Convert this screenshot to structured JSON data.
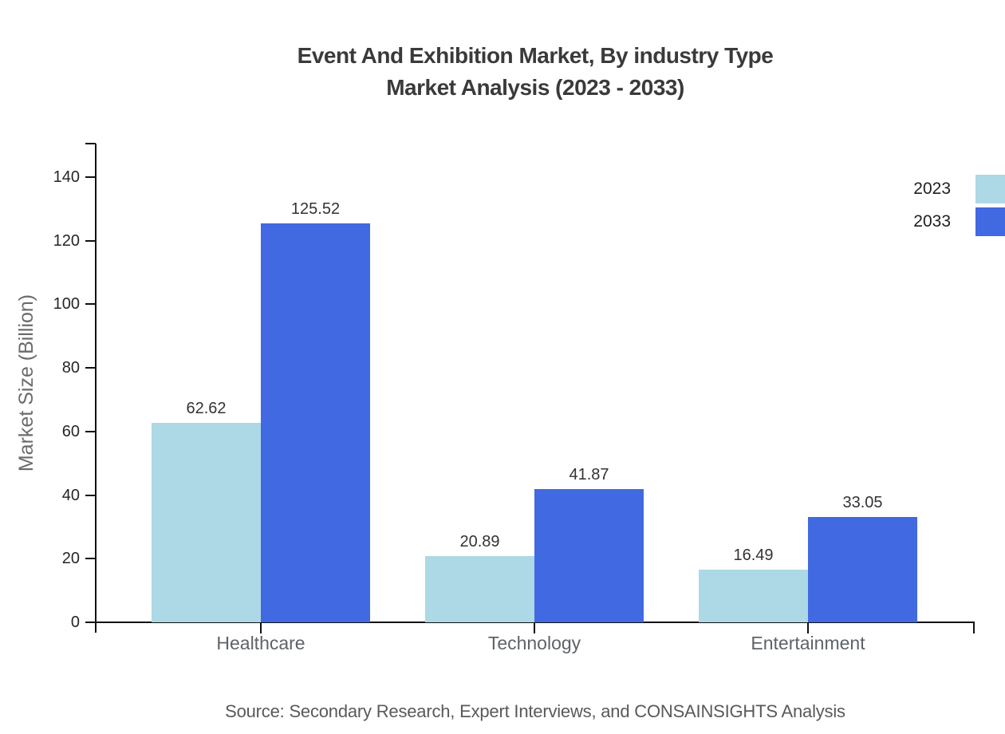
{
  "title": {
    "line1": "Event And Exhibition Market, By industry Type",
    "line2": "Market Analysis (2023 - 2033)"
  },
  "ylabel": "Market Size (Billion)",
  "source": "Source: Secondary Research, Expert Interviews, and CONSAINSIGHTS Analysis",
  "legend": {
    "position": "top-right",
    "items": [
      {
        "label": "2023",
        "color": "#add8e6"
      },
      {
        "label": "2033",
        "color": "#4169e1"
      }
    ]
  },
  "chart_data": {
    "type": "bar",
    "title": "Event And Exhibition Market, By industry Type — Market Analysis (2023 - 2033)",
    "categories": [
      "Healthcare",
      "Technology",
      "Entertainment"
    ],
    "series": [
      {
        "name": "2023",
        "color": "#add8e6",
        "values": [
          62.62,
          20.89,
          16.49
        ]
      },
      {
        "name": "2033",
        "color": "#4169e1",
        "values": [
          125.52,
          41.87,
          33.05
        ]
      }
    ],
    "xlabel": "",
    "ylabel": "Market Size (Billion)",
    "ylim": [
      0,
      150.5
    ],
    "yticks": [
      0,
      20,
      40,
      60,
      80,
      100,
      120,
      140
    ],
    "grid": false,
    "value_labels": true,
    "legend_position": "top-right"
  }
}
